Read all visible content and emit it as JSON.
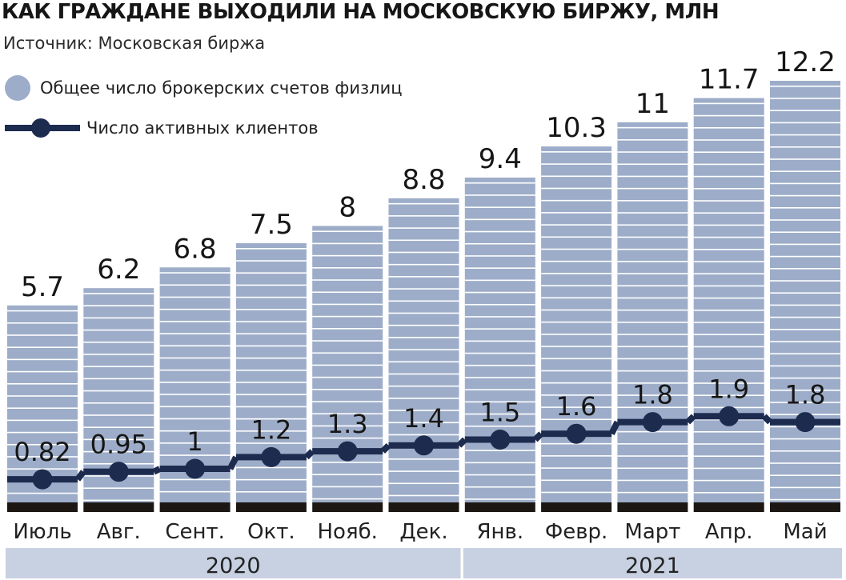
{
  "title": "КАК ГРАЖДАНЕ ВЫХОДИЛИ НА МОСКОВСКУЮ БИРЖУ, МЛН",
  "source": "Источник: Московская биржа",
  "colors": {
    "bar_fill": "#9dadc9",
    "bar_stripe": "#ffffff",
    "line": "#1d2b4f",
    "base": "#1c1713",
    "year_band": "#c7d1e2",
    "text": "#1a1a1a"
  },
  "legend": {
    "bars_label": "Общее число брокерских счетов физлиц",
    "line_label": "Число активных клиентов"
  },
  "chart_data": {
    "type": "bar",
    "categories": [
      "Июль",
      "Авг.",
      "Сент.",
      "Окт.",
      "Нояб.",
      "Дек.",
      "Янв.",
      "Февр.",
      "Март",
      "Апр.",
      "Май"
    ],
    "year_groups": [
      {
        "label": "2020",
        "categories": [
          "Июль",
          "Авг.",
          "Сент.",
          "Окт.",
          "Нояб.",
          "Дек."
        ]
      },
      {
        "label": "2021",
        "categories": [
          "Янв.",
          "Февр.",
          "Март",
          "Апр.",
          "Май"
        ]
      }
    ],
    "series": [
      {
        "name": "Общее число брокерских счетов физлиц",
        "type": "bar",
        "values": [
          5.7,
          6.2,
          6.8,
          7.5,
          8,
          8.8,
          9.4,
          10.3,
          11,
          11.7,
          12.2
        ],
        "labels": [
          "5.7",
          "6.2",
          "6.8",
          "7.5",
          "8",
          "8.8",
          "9.4",
          "10.3",
          "11",
          "11.7",
          "12.2"
        ]
      },
      {
        "name": "Число активных клиентов",
        "type": "line",
        "values": [
          0.82,
          0.95,
          1,
          1.2,
          1.3,
          1.4,
          1.5,
          1.6,
          1.8,
          1.9,
          1.8
        ],
        "labels": [
          "0.82",
          "0.95",
          "1",
          "1.2",
          "1.3",
          "1.4",
          "1.5",
          "1.6",
          "1.8",
          "1.9",
          "1.8"
        ]
      }
    ],
    "ylim": [
      0,
      12.2
    ],
    "grid": false,
    "legend_position": "top-left"
  }
}
